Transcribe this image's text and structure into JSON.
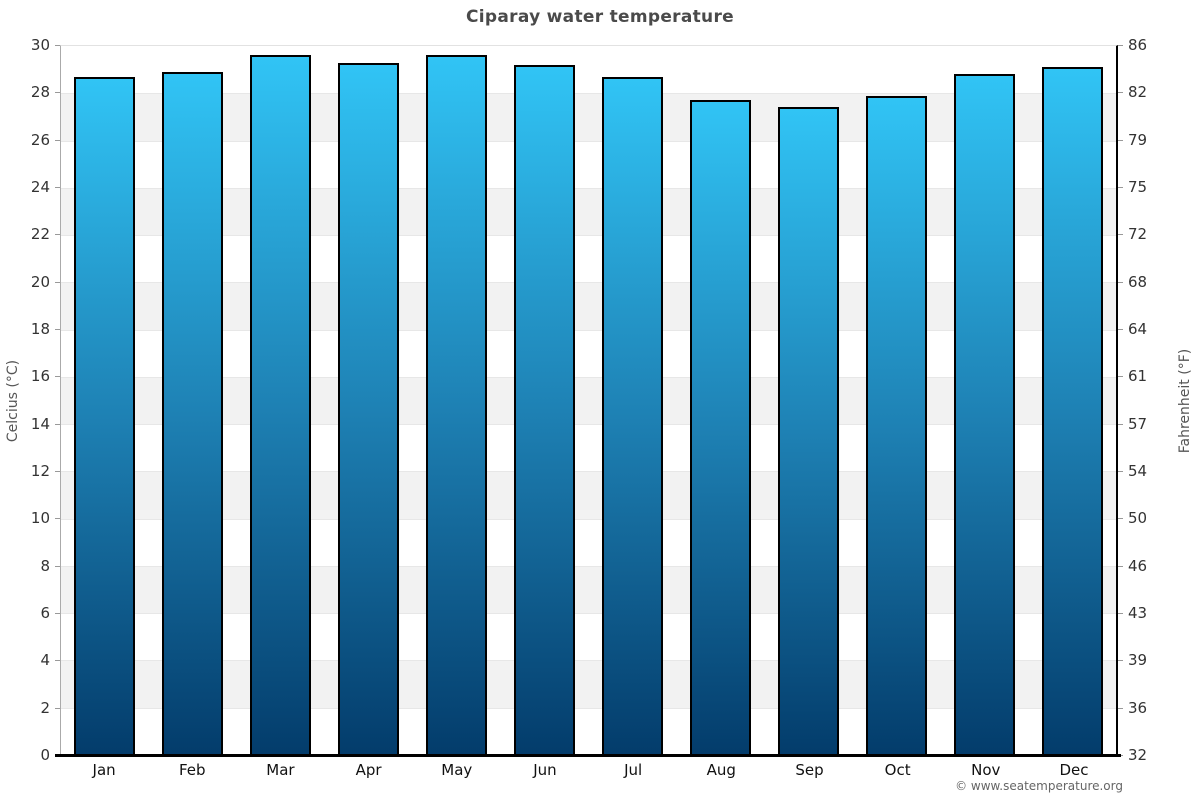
{
  "chart_data": {
    "type": "bar",
    "title": "Ciparay water temperature",
    "categories": [
      "Jan",
      "Feb",
      "Mar",
      "Apr",
      "May",
      "Jun",
      "Jul",
      "Aug",
      "Sep",
      "Oct",
      "Nov",
      "Dec"
    ],
    "values": [
      28.7,
      28.9,
      29.6,
      29.3,
      29.6,
      29.2,
      28.7,
      27.7,
      27.4,
      27.9,
      28.8,
      29.1
    ],
    "unit": "°C",
    "ylabel_left": "Celcius (°C)",
    "ylabel_right": "Fahrenheit (°F)",
    "ylim": [
      0,
      30
    ],
    "y_tick_step": 2,
    "ticks": [
      {
        "celsius": "30",
        "fahrenheit": "86"
      },
      {
        "celsius": "28",
        "fahrenheit": "82"
      },
      {
        "celsius": "26",
        "fahrenheit": "79"
      },
      {
        "celsius": "24",
        "fahrenheit": "75"
      },
      {
        "celsius": "22",
        "fahrenheit": "72"
      },
      {
        "celsius": "20",
        "fahrenheit": "68"
      },
      {
        "celsius": "18",
        "fahrenheit": "64"
      },
      {
        "celsius": "16",
        "fahrenheit": "61"
      },
      {
        "celsius": "14",
        "fahrenheit": "57"
      },
      {
        "celsius": "12",
        "fahrenheit": "54"
      },
      {
        "celsius": "10",
        "fahrenheit": "50"
      },
      {
        "celsius": "8",
        "fahrenheit": "46"
      },
      {
        "celsius": "6",
        "fahrenheit": "43"
      },
      {
        "celsius": "4",
        "fahrenheit": "39"
      },
      {
        "celsius": "2",
        "fahrenheit": "36"
      },
      {
        "celsius": "0",
        "fahrenheit": "32"
      }
    ],
    "band_count": 15,
    "grid": true,
    "legend": "none",
    "colors": {
      "bar_gradient_top": "#31c4f5",
      "bar_gradient_mid": "#1e81b4",
      "bar_gradient_bottom": "#033c6b",
      "bar_border": "#000000",
      "band_gray": "#f2f2f2",
      "band_white": "#ffffff",
      "gridline": "#e7e7e7",
      "axis_bottom": "#000000",
      "title_text": "#4a4a4a"
    }
  },
  "footer": {
    "copyright": "© www.seatemperature.org"
  }
}
